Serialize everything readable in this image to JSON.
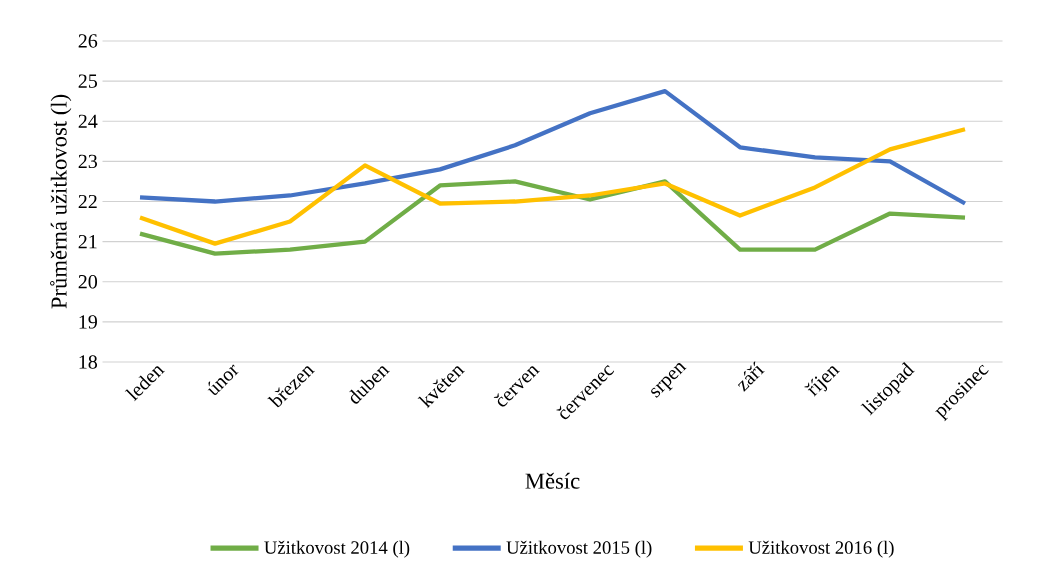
{
  "chart_data": {
    "type": "line",
    "xlabel": "Měsíc",
    "ylabel": "Průměrná užitkovost (l)",
    "categories": [
      "leden",
      "únor",
      "březen",
      "duben",
      "květen",
      "červen",
      "červenec",
      "srpen",
      "září",
      "říjen",
      "listopad",
      "prosinec"
    ],
    "series": [
      {
        "name": "Užitkovost 2014 (l)",
        "color": "#70ad47",
        "values": [
          21.2,
          20.7,
          20.8,
          21.0,
          22.4,
          22.5,
          22.05,
          22.5,
          20.8,
          20.8,
          21.7,
          21.6
        ]
      },
      {
        "name": "Užitkovost 2015 (l)",
        "color": "#4472c4",
        "values": [
          22.1,
          22.0,
          22.15,
          22.45,
          22.8,
          23.4,
          24.2,
          24.75,
          23.35,
          23.1,
          23.0,
          21.95
        ]
      },
      {
        "name": "Užitkovost 2016 (l)",
        "color": "#ffc000",
        "values": [
          21.6,
          20.95,
          21.5,
          22.9,
          21.95,
          22.0,
          22.15,
          22.45,
          21.65,
          22.35,
          23.3,
          23.8
        ]
      }
    ],
    "ylim": [
      18,
      26
    ],
    "yticks": [
      18,
      19,
      20,
      21,
      22,
      23,
      24,
      25,
      26
    ],
    "grid": "y",
    "legend": "bottom",
    "marker": "none",
    "line_style": "solid"
  }
}
